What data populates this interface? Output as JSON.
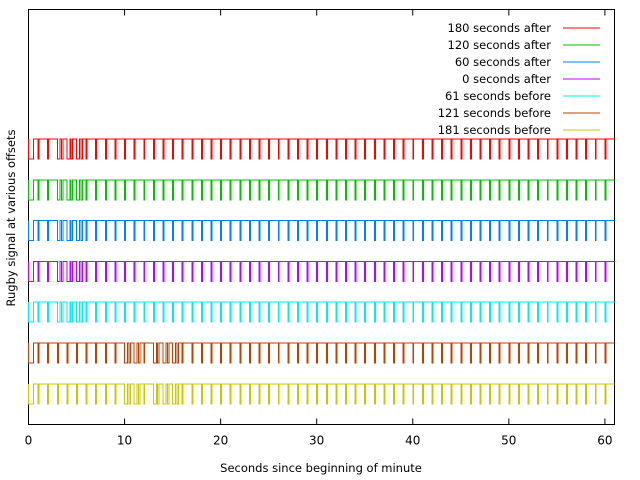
{
  "chart_data": {
    "type": "line",
    "title": "",
    "xlabel": "Seconds since beginning of minute",
    "ylabel": "Rugby signal at various offsets",
    "xlim": [
      0,
      61
    ],
    "xticks": [
      0,
      10,
      20,
      30,
      40,
      50,
      60
    ],
    "grid": false,
    "legend_position": "top-right",
    "signal_description": "pulse train; one low pulse at the start of each second; marker at 0 s",
    "series": [
      {
        "name": "180 seconds after",
        "color": "#ff0000",
        "long_pulse_seconds": [
          3,
          4,
          5
        ]
      },
      {
        "name": "120 seconds after",
        "color": "#00c000",
        "long_pulse_seconds": [
          3,
          4,
          5
        ]
      },
      {
        "name": "60 seconds after",
        "color": "#0080ff",
        "long_pulse_seconds": [
          3,
          4,
          5
        ]
      },
      {
        "name": "0 seconds after",
        "color": "#c000ff",
        "long_pulse_seconds": [
          3,
          4,
          5
        ]
      },
      {
        "name": "61 seconds before",
        "color": "#00eeee",
        "long_pulse_seconds": [
          3,
          4,
          5
        ]
      },
      {
        "name": "121 seconds before",
        "color": "#c04000",
        "long_pulse_seconds": [
          10,
          11,
          13,
          14,
          15
        ]
      },
      {
        "name": "181 seconds before",
        "color": "#c8c800",
        "long_pulse_seconds": [
          10,
          11,
          13,
          14,
          15
        ]
      }
    ]
  }
}
